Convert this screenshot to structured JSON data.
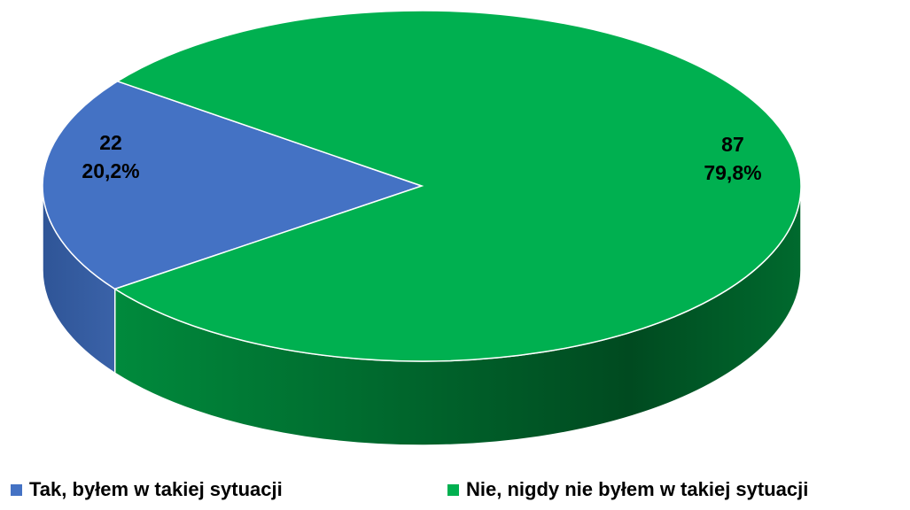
{
  "chart_data": {
    "type": "pie3d",
    "series": [
      {
        "name": "Tak, byłem w takiej sytuacji",
        "color": "#4472c4"
      },
      {
        "name": "Nie, nigdy nie byłem w takiej sytuacji",
        "color": "#00b050"
      }
    ],
    "values": [
      22,
      87
    ],
    "percentages": [
      20.2,
      79.8
    ],
    "percentage_labels": [
      "20,2%",
      "79,8%"
    ],
    "legend": "bottom"
  }
}
